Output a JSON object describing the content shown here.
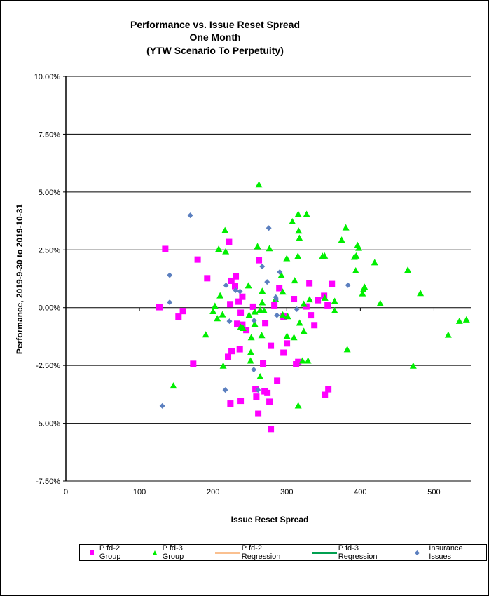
{
  "chart_data": {
    "type": "scatter",
    "title": [
      "Performance vs. Issue Reset Spread",
      "One Month",
      "(YTW Scenario To Perpetuity)"
    ],
    "xlabel": "Issue Reset Spread",
    "ylabel": "Performance, 2019-9-30  to 2019-10-31",
    "xlim": [
      0,
      550
    ],
    "ylim": [
      -7.5,
      10
    ],
    "x_ticks": [
      "0",
      "100",
      "200",
      "300",
      "400",
      "500"
    ],
    "x_tick_values": [
      0,
      100,
      200,
      300,
      400,
      500
    ],
    "y_ticks": [
      "10.00%",
      "7.50%",
      "5.00%",
      "2.50%",
      "0.00%",
      "-2.50%",
      "-5.00%",
      "-7.50%"
    ],
    "y_tick_values": [
      10,
      7.5,
      5,
      2.5,
      0,
      -2.5,
      -5,
      -7.5
    ],
    "grid": "horizontal",
    "legend_position": "bottom",
    "series": [
      {
        "name": "P fd-2 Group",
        "marker": "square",
        "color": "#ff00ff",
        "points": [
          [
            135,
            2.54
          ],
          [
            179,
            2.08
          ],
          [
            192,
            1.27
          ],
          [
            127,
            0.02
          ],
          [
            159,
            -0.15
          ],
          [
            153,
            -0.39
          ],
          [
            173,
            -2.43
          ],
          [
            221.6,
            2.84
          ],
          [
            262.2,
            2.05
          ],
          [
            230.8,
            1.35
          ],
          [
            224.8,
            1.16
          ],
          [
            229.8,
            0.93
          ],
          [
            239.7,
            0.47
          ],
          [
            234.6,
            0.26
          ],
          [
            223.2,
            0.15
          ],
          [
            289.9,
            0.84
          ],
          [
            330.8,
            1.05
          ],
          [
            361.3,
            1.02
          ],
          [
            309.8,
            0.37
          ],
          [
            342.2,
            0.32
          ],
          [
            350.8,
            0.51
          ],
          [
            355.6,
            0.1
          ],
          [
            326.7,
            0.05
          ],
          [
            283.2,
            0.1
          ],
          [
            254.3,
            0.04
          ],
          [
            237.5,
            -0.22
          ],
          [
            232.7,
            -0.7
          ],
          [
            239.7,
            -0.74
          ],
          [
            245.1,
            -0.97
          ],
          [
            270.8,
            -0.67
          ],
          [
            295.6,
            -0.39
          ],
          [
            332.7,
            -0.33
          ],
          [
            337.5,
            -0.76
          ],
          [
            300.3,
            -1.55
          ],
          [
            278.4,
            -1.65
          ],
          [
            295.6,
            -1.95
          ],
          [
            225.1,
            -1.88
          ],
          [
            220.3,
            -2.13
          ],
          [
            236.2,
            -1.8
          ],
          [
            267.9,
            -2.42
          ],
          [
            312.7,
            -2.45
          ],
          [
            315.6,
            -2.35
          ],
          [
            287,
            -3.16
          ],
          [
            356.5,
            -3.53
          ],
          [
            351.8,
            -3.77
          ],
          [
            257.5,
            -3.52
          ],
          [
            269.9,
            -3.62
          ],
          [
            273.7,
            -3.69
          ],
          [
            258.7,
            -3.85
          ],
          [
            237.5,
            -4.03
          ],
          [
            223.5,
            -4.15
          ],
          [
            276.5,
            -4.07
          ],
          [
            261.3,
            -4.59
          ],
          [
            278.4,
            -5.25
          ]
        ]
      },
      {
        "name": "P fd-3 Group",
        "marker": "triangle",
        "color": "#00ee00",
        "points": [
          [
            190,
            -1.17
          ],
          [
            146,
            -3.38
          ],
          [
            262.2,
            5.32
          ],
          [
            315.6,
            4.04
          ],
          [
            327,
            4.04
          ],
          [
            307.6,
            3.72
          ],
          [
            216.2,
            3.34
          ],
          [
            316.2,
            3.32
          ],
          [
            380.3,
            3.46
          ],
          [
            317.2,
            3.01
          ],
          [
            374.6,
            2.93
          ],
          [
            207.6,
            2.54
          ],
          [
            217.1,
            2.43
          ],
          [
            260.3,
            2.65
          ],
          [
            276.5,
            2.56
          ],
          [
            396.2,
            2.7
          ],
          [
            397.8,
            2.58
          ],
          [
            300,
            2.13
          ],
          [
            315.2,
            2.23
          ],
          [
            348.6,
            2.23
          ],
          [
            351.4,
            2.24
          ],
          [
            391.8,
            2.19
          ],
          [
            394.3,
            2.24
          ],
          [
            419.4,
            1.95
          ],
          [
            464.5,
            1.63
          ],
          [
            393.7,
            1.6
          ],
          [
            292.7,
            1.4
          ],
          [
            310.8,
            1.17
          ],
          [
            248,
            0.95
          ],
          [
            266.7,
            0.71
          ],
          [
            294.6,
            0.68
          ],
          [
            405.7,
            0.89
          ],
          [
            404.1,
            0.78
          ],
          [
            402.9,
            0.61
          ],
          [
            481.6,
            0.62
          ],
          [
            209.5,
            0.52
          ],
          [
            351.8,
            0.42
          ],
          [
            331.1,
            0.35
          ],
          [
            365.1,
            0.28
          ],
          [
            284.8,
            0.37
          ],
          [
            266.7,
            0.22
          ],
          [
            427,
            0.19
          ],
          [
            323.2,
            0.16
          ],
          [
            202.5,
            0.07
          ],
          [
            200,
            -0.16
          ],
          [
            212.7,
            -0.3
          ],
          [
            205.7,
            -0.47
          ],
          [
            248.9,
            -0.32
          ],
          [
            256.5,
            -0.18
          ],
          [
            263.8,
            -0.1
          ],
          [
            269.2,
            -0.13
          ],
          [
            294.6,
            -0.31
          ],
          [
            301.3,
            -0.38
          ],
          [
            365.1,
            -0.13
          ],
          [
            317.5,
            -0.66
          ],
          [
            323.2,
            -1.02
          ],
          [
            237.5,
            -0.84
          ],
          [
            240.6,
            -0.89
          ],
          [
            256.5,
            -0.71
          ],
          [
            251.8,
            -1.29
          ],
          [
            266,
            -1.2
          ],
          [
            300.3,
            -1.23
          ],
          [
            309.8,
            -1.29
          ],
          [
            519.4,
            -1.18
          ],
          [
            534.6,
            -0.58
          ],
          [
            544.1,
            -0.52
          ],
          [
            382.2,
            -1.81
          ],
          [
            251.1,
            -1.93
          ],
          [
            250.8,
            -2.3
          ],
          [
            213.7,
            -2.52
          ],
          [
            321.3,
            -2.3
          ],
          [
            328.9,
            -2.3
          ],
          [
            471.8,
            -2.52
          ],
          [
            263.8,
            -2.98
          ],
          [
            315.6,
            -4.24
          ]
        ]
      },
      {
        "name": "P fd-2 Regression",
        "marker": "line",
        "color": "#fac090",
        "points": []
      },
      {
        "name": "P fd-3 Regression",
        "marker": "line",
        "color": "#00a050",
        "points": []
      },
      {
        "name": "Insurance Issues",
        "marker": "diamond",
        "color": "#5b7fbf",
        "points": [
          [
            169,
            3.99
          ],
          [
            141,
            1.4
          ],
          [
            141,
            0.23
          ],
          [
            131,
            -4.25
          ],
          [
            275.6,
            3.44
          ],
          [
            266.7,
            1.78
          ],
          [
            290.5,
            1.54
          ],
          [
            273.3,
            1.11
          ],
          [
            383.2,
            0.97
          ],
          [
            217.5,
            0.96
          ],
          [
            230.5,
            0.75
          ],
          [
            236.5,
            0.7
          ],
          [
            285.1,
            0.45
          ],
          [
            285.7,
            0.37
          ],
          [
            313.7,
            -0.07
          ],
          [
            286.7,
            -0.33
          ],
          [
            222.2,
            -0.59
          ],
          [
            255.6,
            -0.56
          ],
          [
            255.2,
            -2.68
          ],
          [
            216.5,
            -3.56
          ],
          [
            261,
            -3.56
          ]
        ]
      }
    ]
  }
}
